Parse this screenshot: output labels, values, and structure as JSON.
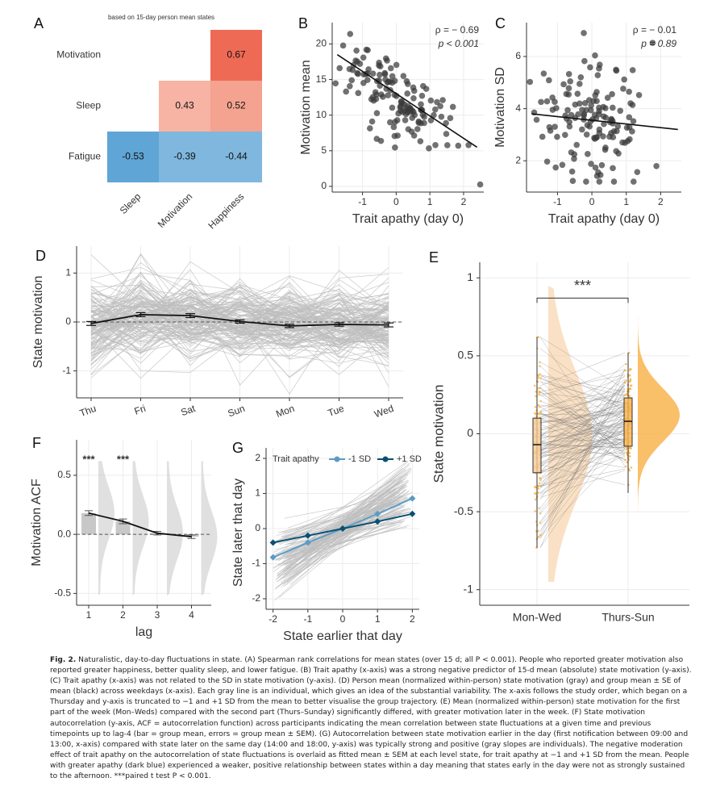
{
  "panel_labels": {
    "A": "A",
    "B": "B",
    "C": "C",
    "D": "D",
    "E": "E",
    "F": "F",
    "G": "G"
  },
  "colors": {
    "red_strong": "#ef6a55",
    "red_mid": "#f4a390",
    "red_light": "#f7b3a4",
    "blue_strong": "#5fa5d6",
    "blue_light": "#7fb7de",
    "point": "#3a3a3a",
    "gray_line": "#bdbdbd",
    "orange": "#f9b44f",
    "orange_light": "#f5c996",
    "blue_dark": "#0b4f72",
    "blue_mid": "#5b9bc4"
  },
  "chart_data": [
    {
      "id": "A",
      "type": "heatmap",
      "subtitle": "based on 15-day person mean states",
      "rows": [
        "Motivation",
        "Sleep",
        "Fatigue"
      ],
      "cols": [
        "Sleep",
        "Motivation",
        "Happiness"
      ],
      "cells": [
        {
          "row": "Motivation",
          "col": "Happiness",
          "value": 0.67,
          "label": "0.67"
        },
        {
          "row": "Sleep",
          "col": "Motivation",
          "value": 0.43,
          "label": "0.43"
        },
        {
          "row": "Sleep",
          "col": "Happiness",
          "value": 0.52,
          "label": "0.52"
        },
        {
          "row": "Fatigue",
          "col": "Sleep",
          "value": -0.53,
          "label": "-0.53"
        },
        {
          "row": "Fatigue",
          "col": "Motivation",
          "value": -0.39,
          "label": "-0.39"
        },
        {
          "row": "Fatigue",
          "col": "Happiness",
          "value": -0.44,
          "label": "-0.44"
        }
      ]
    },
    {
      "id": "B",
      "type": "scatter",
      "xlabel": "Trait apathy (day 0)",
      "ylabel": "Motivation mean",
      "xlim": [
        -1.9,
        2.6
      ],
      "ylim": [
        -0.8,
        23
      ],
      "xticks": [
        "-1",
        "0",
        "1",
        "2"
      ],
      "xtick_values": [
        -1,
        0,
        1,
        2
      ],
      "yticks": [
        "0",
        "5",
        "10",
        "15",
        "20"
      ],
      "ytick_values": [
        0,
        5,
        10,
        15,
        20
      ],
      "annotation_rho": "ρ = − 0.69",
      "annotation_p": "p < 0.001",
      "fit": {
        "x": [
          -1.75,
          2.4
        ],
        "y": [
          18.5,
          5.5
        ]
      },
      "n_points": 140
    },
    {
      "id": "C",
      "type": "scatter",
      "xlabel": "Trait apathy (day 0)",
      "ylabel": "Motivation SD",
      "xlim": [
        -1.9,
        2.6
      ],
      "ylim": [
        0.8,
        7.3
      ],
      "xticks": [
        "-1",
        "0",
        "1",
        "2"
      ],
      "xtick_values": [
        -1,
        0,
        1,
        2
      ],
      "yticks": [
        "2",
        "4",
        "6"
      ],
      "ytick_values": [
        2,
        4,
        6
      ],
      "annotation_rho": "ρ = − 0.01",
      "annotation_p": "p = 0.89",
      "fit": {
        "x": [
          -1.75,
          2.5
        ],
        "y": [
          3.8,
          3.2
        ]
      },
      "n_points": 140
    },
    {
      "id": "D",
      "type": "line",
      "ylabel": "State motivation",
      "categories": [
        "Thu",
        "Fri",
        "Sat",
        "Sun",
        "Mon",
        "Tue",
        "Wed"
      ],
      "ylim": [
        -1.55,
        1.55
      ],
      "yticks": [
        "-1",
        "0",
        "1"
      ],
      "ytick_values": [
        -1,
        0,
        1
      ],
      "group_mean": [
        -0.03,
        0.15,
        0.13,
        0.01,
        -0.08,
        -0.05,
        -0.06
      ],
      "sem": [
        0.04,
        0.04,
        0.04,
        0.035,
        0.035,
        0.035,
        0.04
      ],
      "n_lines": 150
    },
    {
      "id": "E",
      "type": "raincloud",
      "ylabel": "State motivation",
      "categories": [
        "Mon-Wed",
        "Thurs-Sun"
      ],
      "ylim": [
        -1.1,
        1.1
      ],
      "yticks": [
        "-1",
        "-0.5",
        "0",
        "0.5",
        "1"
      ],
      "ytick_values": [
        -1,
        -0.5,
        0,
        0.5,
        1
      ],
      "significance": "***",
      "box": [
        {
          "q1": -0.25,
          "median": -0.07,
          "q3": 0.1,
          "min": -0.73,
          "max": 0.62
        },
        {
          "q1": -0.08,
          "median": 0.08,
          "q3": 0.23,
          "min": -0.38,
          "max": 0.52
        }
      ]
    },
    {
      "id": "F",
      "type": "bar",
      "xlabel": "lag",
      "ylabel": "Motivation ACF",
      "categories": [
        "1",
        "2",
        "3",
        "4"
      ],
      "values": [
        0.18,
        0.11,
        0.01,
        -0.02
      ],
      "errors": [
        0.02,
        0.02,
        0.015,
        0.015
      ],
      "ylim": [
        -0.6,
        0.8
      ],
      "yticks": [
        "-0.5",
        "0.0",
        "0.5"
      ],
      "ytick_values": [
        -0.5,
        0,
        0.5
      ],
      "significance": [
        "***",
        "***",
        "",
        ""
      ]
    },
    {
      "id": "G",
      "type": "line",
      "xlabel": "State earlier that day",
      "ylabel": "State later that day",
      "xlim": [
        -2.2,
        2.2
      ],
      "ylim": [
        -2.3,
        2.3
      ],
      "xticks": [
        "-2",
        "-1",
        "0",
        "1",
        "2"
      ],
      "xtick_values": [
        -2,
        -1,
        0,
        1,
        2
      ],
      "yticks": [
        "-2",
        "-1",
        "0",
        "1",
        "2"
      ],
      "ytick_values": [
        -2,
        -1,
        0,
        1,
        2
      ],
      "legend_title": "Trait apathy",
      "series": [
        {
          "name": "-1 SD",
          "x": [
            -2,
            -1,
            0,
            1,
            2
          ],
          "y": [
            -0.82,
            -0.4,
            0.0,
            0.42,
            0.86
          ]
        },
        {
          "name": "+1 SD",
          "x": [
            -2,
            -1,
            0,
            1,
            2
          ],
          "y": [
            -0.4,
            -0.2,
            0.0,
            0.2,
            0.42
          ]
        }
      ],
      "n_lines": 110
    }
  ],
  "caption": {
    "fig_label": "Fig. 2.",
    "text": "Naturalistic, day-to-day fluctuations in state. (A) Spearman rank correlations for mean states (over 15 d; all P < 0.001). People who reported greater motivation also reported greater happiness, better quality sleep, and lower fatigue. (B) Trait apathy (x-axis) was a strong negative predictor of 15-d mean (absolute) state motivation (y-axis). (C) Trait apathy (x-axis) was not related to the SD in state motivation (y-axis). (D) Person mean (normalized within-person) state motivation (gray) and group mean ± SE of mean (black) across weekdays (x-axis). Each gray line is an individual, which gives an idea of the substantial variability. The x-axis follows the study order, which began on a Thursday and y-axis is truncated to −1 and +1 SD from the mean to better visualise the group trajectory. (E) Mean (normalized within-person) state motivation for the first part of the week (Mon–Weds) compared with the second part (Thurs–Sunday) significantly differed, with greater motivation later in the week. (F) State motivation autocorrelation (y-axis, ACF = autocorrelation function) across participants indicating the mean correlation between state fluctuations at a given time and previous timepoints up to lag-4 (bar = group mean, errors = group mean ± SEM). (G) Autocorrelation between state motivation earlier in the day (first notification between 09:00 and 13:00, x-axis) compared with state later on the same day (14:00 and 18:00, y-axis) was typically strong and positive (gray slopes are individuals). The negative moderation effect of trait apathy on the autocorrelation of state fluctuations is overlaid as fitted mean ± SEM at each level state, for trait apathy at −1 and +1 SD from the mean. People with greater apathy (dark blue) experienced a weaker, positive relationship between states within a day meaning that states early in the day were not as strongly sustained to the afternoon. ***paired t test P < 0.001."
  }
}
